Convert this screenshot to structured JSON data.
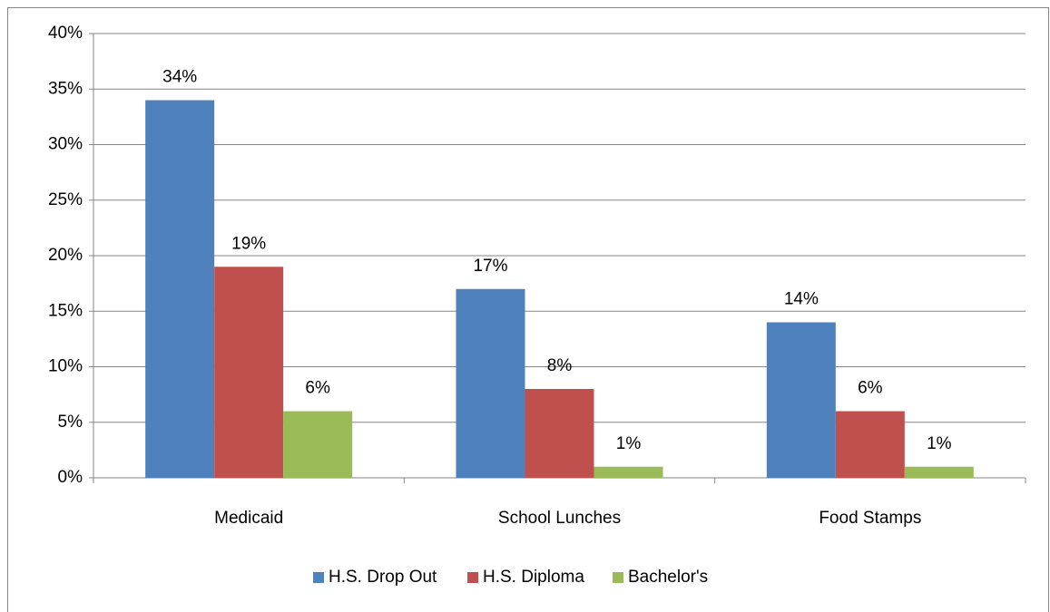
{
  "chart_data": {
    "type": "bar",
    "categories": [
      "Medicaid",
      "School Lunches",
      "Food Stamps"
    ],
    "series": [
      {
        "name": "H.S. Drop Out",
        "color": "#4f81bd",
        "values": [
          34,
          17,
          14
        ],
        "value_labels": [
          "34%",
          "17%",
          "14%"
        ]
      },
      {
        "name": "H.S. Diploma",
        "color": "#c0504d",
        "values": [
          19,
          8,
          6
        ],
        "value_labels": [
          "19%",
          "8%",
          "6%"
        ]
      },
      {
        "name": "Bachelor's",
        "color": "#9bbb59",
        "values": [
          6,
          1,
          1
        ],
        "value_labels": [
          "6%",
          "1%",
          "1%"
        ]
      }
    ],
    "ylim": [
      0,
      40
    ],
    "yticks": [
      {
        "value": 0,
        "label": "0%"
      },
      {
        "value": 5,
        "label": "5%"
      },
      {
        "value": 10,
        "label": "10%"
      },
      {
        "value": 15,
        "label": "15%"
      },
      {
        "value": 20,
        "label": "20%"
      },
      {
        "value": 25,
        "label": "25%"
      },
      {
        "value": 30,
        "label": "30%"
      },
      {
        "value": 35,
        "label": "35%"
      },
      {
        "value": 40,
        "label": "40%"
      }
    ],
    "grid": true,
    "legend": "bottom"
  }
}
